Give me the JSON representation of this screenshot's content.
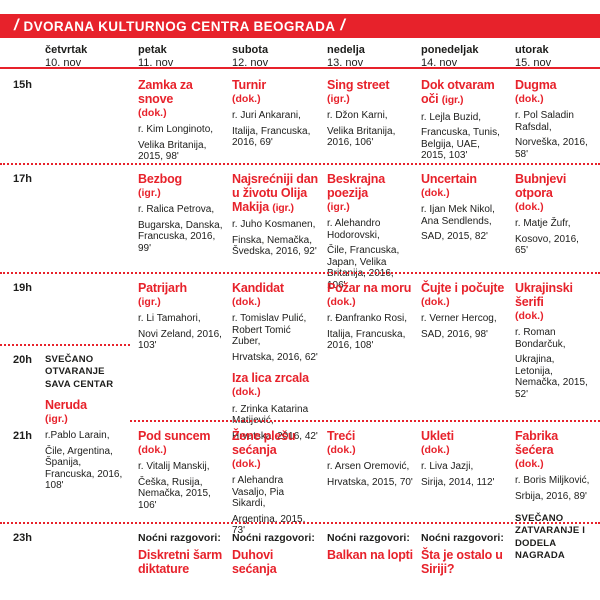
{
  "accent_color": "#e7222b",
  "banner": {
    "slash_left": "/",
    "title": "DVORANA KULTURNOG CENTRA BEOGRADA",
    "slash_right": "/"
  },
  "days": [
    {
      "name": "četvrtak",
      "date": "10. nov"
    },
    {
      "name": "petak",
      "date": "11. nov"
    },
    {
      "name": "subota",
      "date": "12. nov"
    },
    {
      "name": "nedelja",
      "date": "13. nov"
    },
    {
      "name": "ponedeljak",
      "date": "14. nov"
    },
    {
      "name": "utorak",
      "date": "15. nov"
    }
  ],
  "rows": [
    {
      "time": "15h",
      "fri": {
        "title": "Zamka za snove",
        "type": "(dok.)",
        "director": "r. Kim Longinoto,",
        "info": "Velika Britanija, 2015, 98'"
      },
      "sat": {
        "title": "Turnir",
        "type": "(dok.)",
        "director": "r. Juri Ankarani,",
        "info": "Italija, Francuska, 2016, 69'"
      },
      "sun": {
        "title": "Sing street",
        "type": "(igr.)",
        "director": "r. Džon Karni,",
        "info": "Velika Britanija, 2016, 106'"
      },
      "mon": {
        "title": "Dok otvaram oči",
        "type": "(igr.)",
        "director": "r. Lejla Buzid,",
        "info": "Francuska, Tunis, Belgija, UAE, 2015, 103'"
      },
      "tue": {
        "title": "Dugma",
        "type": "(dok.)",
        "director": "r. Pol Saladin Rafsdal,",
        "info": "Norveška, 2016, 58'"
      }
    },
    {
      "time": "17h",
      "fri": {
        "title": "Bezbog",
        "type": "(igr.)",
        "director": "r. Ralica Petrova,",
        "info": "Bugarska, Danska, Francuska, 2016, 99'"
      },
      "sat": {
        "title": "Najsrećniji dan u životu Olija Makija",
        "type": "(igr.)",
        "director": "r. Juho Kosmanen,",
        "info": "Finska, Nemačka, Švedska, 2016, 92'"
      },
      "sun": {
        "title": "Beskrajna poezija",
        "type": "(igr.)",
        "director": "r. Alehandro Hodorovski,",
        "info": "Čile, Francuska, Japan, Velika Britanija, 2016, 106'"
      },
      "mon": {
        "title": "Uncertain",
        "type": "(dok.)",
        "director": "r. Ijan Mek Nikol, Ana Sendlends,",
        "info": "SAD, 2015, 82'"
      },
      "tue": {
        "title": "Bubnjevi otpora",
        "type": "(dok.)",
        "director": "r. Matje Žufr,",
        "info": "Kosovo, 2016, 65'"
      }
    },
    {
      "time": "19h",
      "fri": {
        "title": "Patrijarh",
        "type": "(igr.)",
        "director": "r. Li Tamahori,",
        "info": "Novi Zeland, 2016, 103'"
      },
      "sat": [
        {
          "title": "Kandidat",
          "type": "(dok.)",
          "director": "r. Tomislav Pulić, Robert Tomić Zuber,",
          "info": "Hrvatska, 2016, 62'"
        },
        {
          "title": "Iza lica zrcala",
          "type": "(dok.)",
          "director": "r. Zrinka Katarina Matijević,",
          "info": "Hrvatska, 2016, 42'"
        }
      ],
      "sun": {
        "title": "Požar na moru",
        "type": "(dok.)",
        "director": "r. Đanfranko Rosi,",
        "info": "Italija, Francuska, 2016, 108'"
      },
      "mon": {
        "title": "Čujte i počujte",
        "type": "(dok.)",
        "director": "r. Verner Hercog,",
        "info": "SAD, 2016, 98'"
      },
      "tue": {
        "title": "Ukrajinski šerifi",
        "type": "(dok.)",
        "director": "r. Roman Bondarčuk,",
        "info": "Ukrajina, Letonija, Nemačka, 2015, 52'"
      }
    },
    {
      "time": "20h",
      "thu": {
        "note": "SVEČANO OTVARANJE SAVA CENTAR",
        "title": "Neruda",
        "type": "(igr.)",
        "director": "r.Pablo Larain,",
        "info": "Čile, Argentina, Španija, Francuska, 2016, 108'"
      }
    },
    {
      "time": "21h",
      "fri": {
        "title": "Pod suncem",
        "type": "(dok.)",
        "director": "r. Vitalij Manskij,",
        "info": "Češka, Rusija, Nemačka, 2015, 106'"
      },
      "sat": {
        "title": "Žene plešu sećanja",
        "type": "(dok.)",
        "director": "r Alehandra Vasaljo, Pia Sikardi,",
        "info": "Argentina, 2015, 73'"
      },
      "sun": {
        "title": "Treći",
        "type": "(dok.)",
        "director": "r. Arsen Oremović,",
        "info": "Hrvatska, 2015, 70'"
      },
      "mon": {
        "title": "Ukleti",
        "type": "(dok.)",
        "director": "r. Liva Jazji,",
        "info": "Sirija, 2014, 112'"
      },
      "tue": {
        "title": "Fabrika šećera",
        "type": "(dok.)",
        "director": "r. Boris Miljković,",
        "info": "Srbija, 2016, 89'",
        "note": "SVEČANO ZATVARANJE I DODELA NAGRADA"
      }
    },
    {
      "time": "23h",
      "fri": {
        "label": "Noćni razgovori:",
        "title": "Diskretni šarm diktature"
      },
      "sat": {
        "label": "Noćni razgovori:",
        "title": "Duhovi sećanja"
      },
      "sun": {
        "label": "Noćni razgovori:",
        "title": "Balkan na lopti"
      },
      "mon": {
        "label": "Noćni razgovori:",
        "title": "Šta je ostalo u Siriji?"
      }
    }
  ]
}
